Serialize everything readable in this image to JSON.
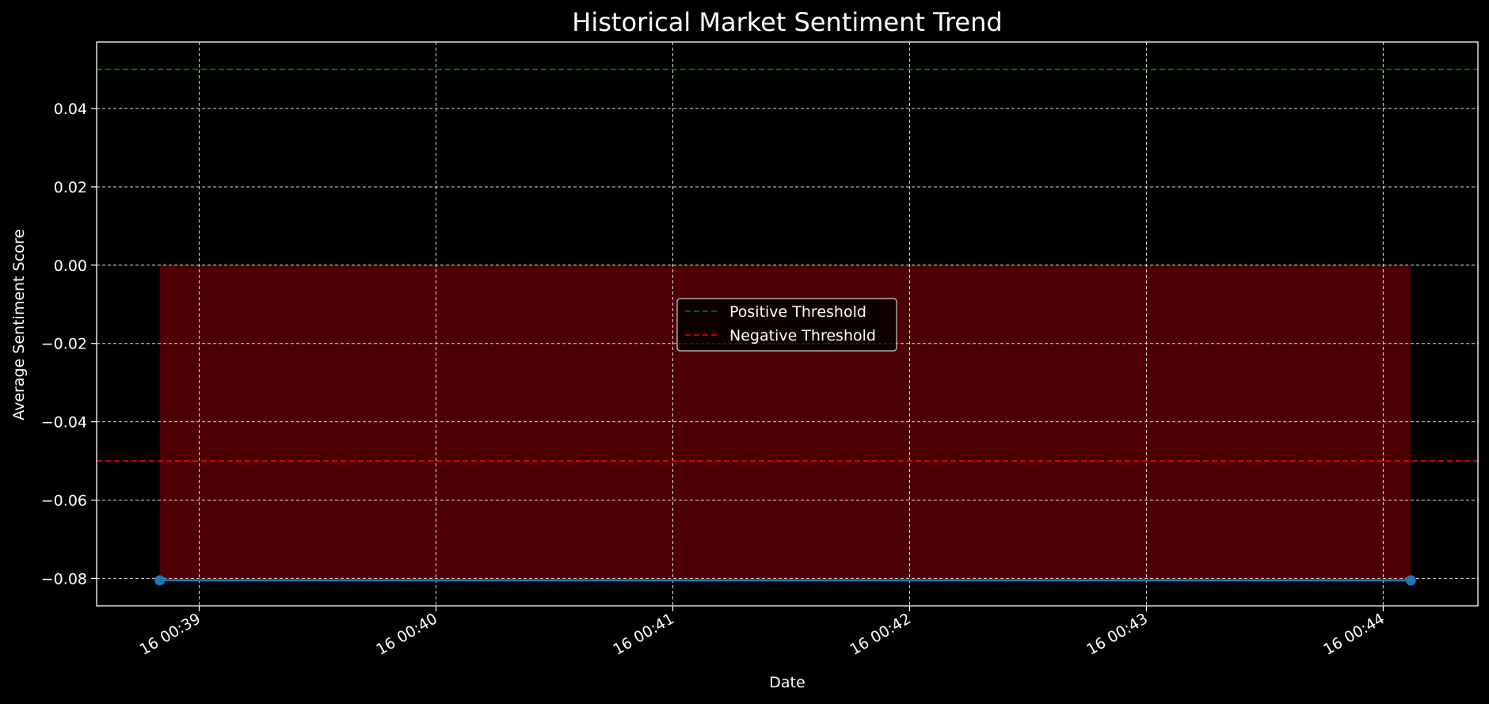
{
  "chart_data": {
    "type": "line",
    "title": "Historical Market Sentiment Trend",
    "xlabel": "Date",
    "ylabel": "Average Sentiment Score",
    "x_tick_labels": [
      "16 00:39",
      "16 00:40",
      "16 00:41",
      "16 00:42",
      "16 00:43",
      "16 00:44"
    ],
    "x_ticks_minutes": [
      "00:39",
      "00:40",
      "00:41",
      "00:42",
      "00:43",
      "00:44"
    ],
    "xlim": [
      "00:38:34",
      "00:44:24"
    ],
    "y_ticks": [
      0.04,
      0.02,
      0.0,
      -0.02,
      -0.04,
      -0.06,
      -0.08
    ],
    "y_tick_labels": [
      "0.04",
      "0.02",
      "0.00",
      "−0.02",
      "−0.04",
      "−0.06",
      "−0.08"
    ],
    "ylim": [
      -0.087,
      0.057
    ],
    "grid": true,
    "series": [
      {
        "x": [
          "00:38:50",
          "00:44:07"
        ],
        "y": [
          -0.0805,
          -0.0805
        ],
        "color": "#1f77b4",
        "marker": "circle"
      }
    ],
    "fill_between": {
      "y_top": 0.0,
      "y_bottom": -0.0805,
      "color": "#4d0003"
    },
    "thresholds": [
      {
        "name": "Positive Threshold",
        "value": 0.05,
        "color": "#008000",
        "style": "dashed"
      },
      {
        "name": "Negative Threshold",
        "value": -0.05,
        "color": "#ff0000",
        "style": "dashed"
      }
    ],
    "legend_placement": "center",
    "colors": {
      "background": "#000000",
      "grid": "#ffffff",
      "text": "#ffffff",
      "axes": "#ffffff"
    }
  }
}
